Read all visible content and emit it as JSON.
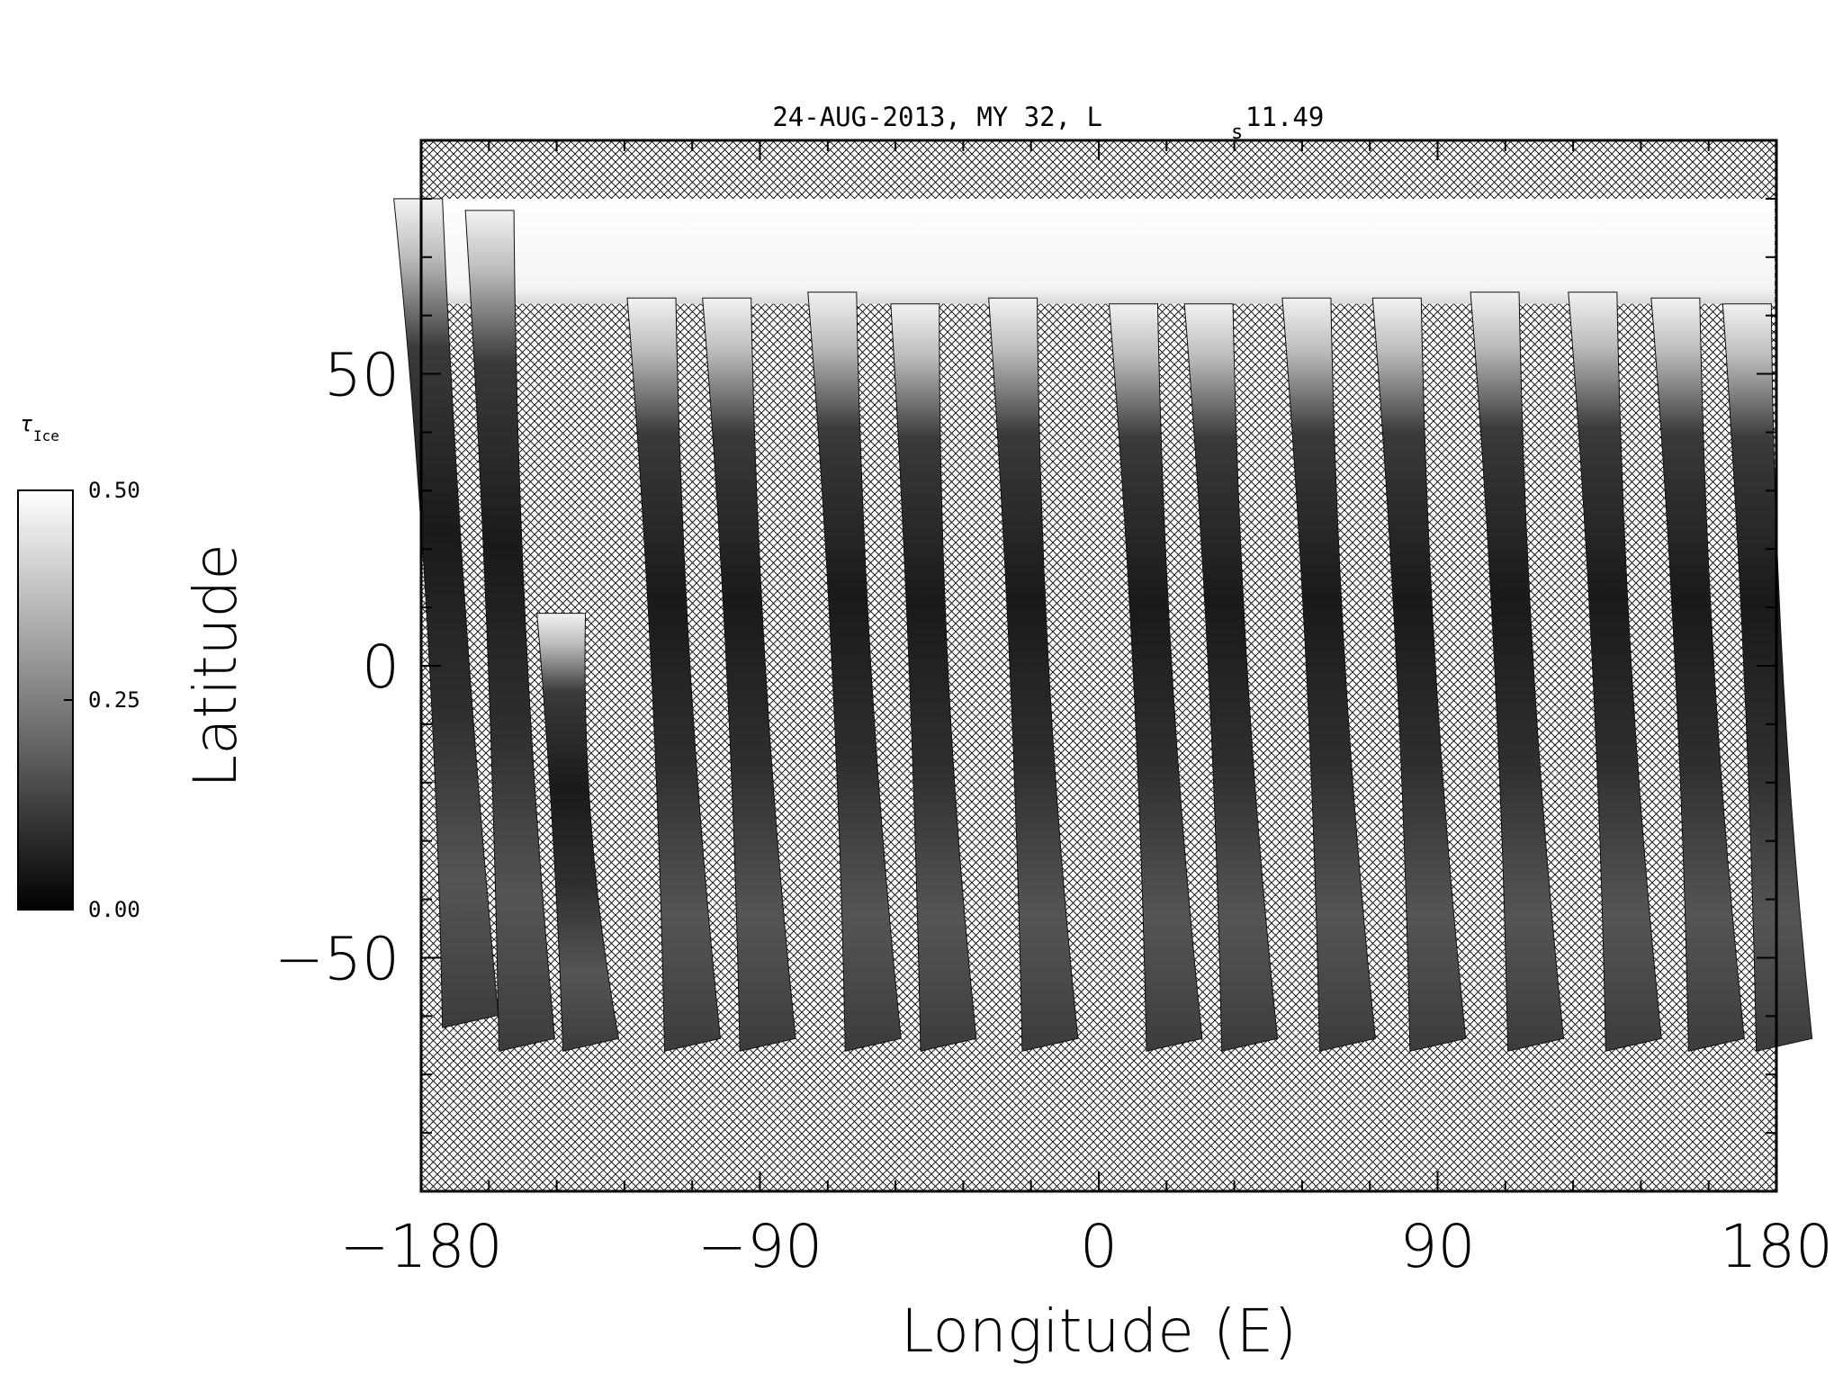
{
  "chart_data": {
    "type": "heatmap",
    "title": "24-AUG-2013, MY 32,  L",
    "title_subscript": "s",
    "title_suffix": " 11.49",
    "xlabel": "Longitude (E)",
    "ylabel": "Latitude",
    "xlim": [
      -180,
      180
    ],
    "ylim": [
      -90,
      90
    ],
    "x_ticks": [
      -180,
      -90,
      0,
      90,
      180
    ],
    "x_tick_labels": [
      "−180",
      "−90",
      "0",
      "90",
      "180"
    ],
    "y_ticks": [
      -50,
      0,
      50
    ],
    "y_tick_labels": [
      "−50",
      "0",
      "50"
    ],
    "x_minor_step": 18,
    "y_minor_step": 10,
    "no_data_pattern": "crosshatch",
    "colorbar": {
      "label": "τ",
      "label_subscript": "Ice",
      "range": [
        0.0,
        0.5
      ],
      "tick_labels": [
        "0.50",
        "0.25",
        "0.00"
      ],
      "tick_values": [
        0.5,
        0.25,
        0.0
      ],
      "colormap": "grayscale",
      "color_low": "#000000",
      "color_high": "#ffffff"
    },
    "swaths": [
      {
        "lon_top": -182,
        "lon_bottom": -171,
        "lat_top": 80,
        "lat_bottom": -62
      },
      {
        "lon_top": -163,
        "lon_bottom": -156,
        "lat_top": 78,
        "lat_bottom": -66
      },
      {
        "lon_top": -144,
        "lon_bottom": -139,
        "lat_top": 9,
        "lat_bottom": -66
      },
      {
        "lon_top": -120,
        "lon_bottom": -112,
        "lat_top": 63,
        "lat_bottom": -66
      },
      {
        "lon_top": -100,
        "lon_bottom": -92,
        "lat_top": 63,
        "lat_bottom": -66
      },
      {
        "lon_top": -72,
        "lon_bottom": -64,
        "lat_top": 64,
        "lat_bottom": -66
      },
      {
        "lon_top": -50,
        "lon_bottom": -44,
        "lat_top": 62,
        "lat_bottom": -66
      },
      {
        "lon_top": -24,
        "lon_bottom": -17,
        "lat_top": 63,
        "lat_bottom": -66
      },
      {
        "lon_top": 8,
        "lon_bottom": 16,
        "lat_top": 62,
        "lat_bottom": -66
      },
      {
        "lon_top": 28,
        "lon_bottom": 36,
        "lat_top": 62,
        "lat_bottom": -66
      },
      {
        "lon_top": 54,
        "lon_bottom": 62,
        "lat_top": 63,
        "lat_bottom": -66
      },
      {
        "lon_top": 78,
        "lon_bottom": 86,
        "lat_top": 63,
        "lat_bottom": -66
      },
      {
        "lon_top": 104,
        "lon_bottom": 112,
        "lat_top": 64,
        "lat_bottom": -66
      },
      {
        "lon_top": 130,
        "lon_bottom": 138,
        "lat_top": 64,
        "lat_bottom": -66
      },
      {
        "lon_top": 152,
        "lon_bottom": 160,
        "lat_top": 63,
        "lat_bottom": -66
      },
      {
        "lon_top": 171,
        "lon_bottom": 178,
        "lat_top": 62,
        "lat_bottom": -66
      }
    ],
    "polar_cap": {
      "lat_top": 80,
      "lat_edge": 62,
      "tau": 0.5
    }
  }
}
